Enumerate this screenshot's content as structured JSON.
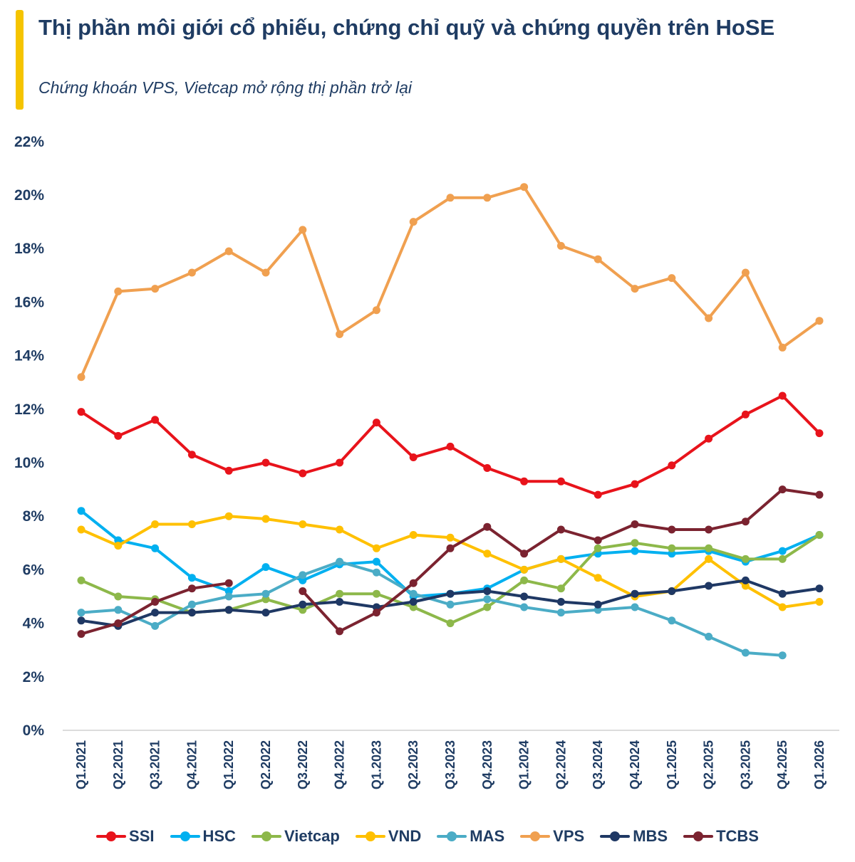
{
  "header": {
    "title": "Thị phần môi giới cổ phiếu, chứng chỉ quỹ và chứng quyền trên HoSE",
    "subtitle": "Chứng khoán VPS, Vietcap mở rộng thị phần trở lại",
    "accent_color": "#f5c400"
  },
  "chart_data": {
    "type": "line",
    "title": "Thị phần môi giới cổ phiếu, chứng chỉ quỹ và chứng quyền trên HoSE",
    "subtitle": "Chứng khoán VPS, Vietcap mở rộng thị phần trở lại",
    "xlabel": "",
    "ylabel": "",
    "ylim": [
      0,
      22
    ],
    "y_ticks": [
      "0%",
      "2%",
      "4%",
      "6%",
      "8%",
      "10%",
      "12%",
      "14%",
      "16%",
      "18%",
      "20%",
      "22%"
    ],
    "grid": false,
    "legend_position": "bottom",
    "categories": [
      "Q1.2021",
      "Q2.2021",
      "Q3.2021",
      "Q4.2021",
      "Q1.2022",
      "Q2.2022",
      "Q3.2022",
      "Q4.2022",
      "Q1.2023",
      "Q2.2023",
      "Q3.2023",
      "Q4.2023",
      "Q1.2024",
      "Q2.2024",
      "Q3.2024",
      "Q4.2024",
      "Q1.2025",
      "Q2.2025",
      "Q3.2025",
      "Q4.2025",
      "Q1.2026"
    ],
    "series": [
      {
        "name": "SSI",
        "color": "#e8131b",
        "values": [
          11.9,
          11.0,
          11.6,
          10.3,
          9.7,
          10.0,
          9.6,
          10.0,
          11.5,
          10.2,
          10.6,
          9.8,
          9.3,
          9.3,
          8.8,
          9.2,
          9.9,
          10.9,
          11.8,
          12.5,
          11.1
        ]
      },
      {
        "name": "HSC",
        "color": "#00b0f0",
        "values": [
          8.2,
          7.1,
          6.8,
          5.7,
          5.2,
          6.1,
          5.6,
          6.2,
          6.3,
          5.0,
          5.1,
          5.3,
          6.0,
          6.4,
          6.6,
          6.7,
          6.6,
          6.7,
          6.3,
          6.7,
          7.3
        ]
      },
      {
        "name": "Vietcap",
        "color": "#8db84a",
        "values": [
          5.6,
          5.0,
          4.9,
          4.4,
          4.5,
          4.9,
          4.5,
          5.1,
          5.1,
          4.6,
          4.0,
          4.6,
          5.6,
          5.3,
          6.8,
          7.0,
          6.8,
          6.8,
          6.4,
          6.4,
          7.3
        ]
      },
      {
        "name": "VND",
        "color": "#ffc000",
        "values": [
          7.5,
          6.9,
          7.7,
          7.7,
          8.0,
          7.9,
          7.7,
          7.5,
          6.8,
          7.3,
          7.2,
          6.6,
          6.0,
          6.4,
          5.7,
          5.0,
          5.2,
          6.4,
          5.4,
          4.6,
          4.8
        ]
      },
      {
        "name": "MAS",
        "color": "#4bacc6",
        "values": [
          4.4,
          4.5,
          3.9,
          4.7,
          5.0,
          5.1,
          5.8,
          6.3,
          5.9,
          5.1,
          4.7,
          4.9,
          4.6,
          4.4,
          4.5,
          4.6,
          4.1,
          3.5,
          2.9,
          2.8,
          null
        ]
      },
      {
        "name": "VPS",
        "color": "#f0a050",
        "values": [
          13.2,
          16.4,
          16.5,
          17.1,
          17.9,
          17.1,
          18.7,
          14.8,
          15.7,
          19.0,
          19.9,
          19.9,
          20.3,
          18.1,
          17.6,
          16.5,
          16.9,
          15.4,
          17.1,
          14.3,
          15.3
        ]
      },
      {
        "name": "MBS",
        "color": "#1f3864",
        "values": [
          4.1,
          3.9,
          4.4,
          4.4,
          4.5,
          4.4,
          4.7,
          4.8,
          4.6,
          4.8,
          5.1,
          5.2,
          5.0,
          4.8,
          4.7,
          5.1,
          5.2,
          5.4,
          5.6,
          5.1,
          5.3
        ]
      },
      {
        "name": "TCBS",
        "color": "#7b2330",
        "values": [
          3.6,
          4.0,
          4.8,
          5.3,
          5.5,
          null,
          5.2,
          3.7,
          4.4,
          5.5,
          6.8,
          7.6,
          6.6,
          7.5,
          7.1,
          7.7,
          7.5,
          7.5,
          7.8,
          9.0,
          8.8
        ]
      }
    ]
  }
}
